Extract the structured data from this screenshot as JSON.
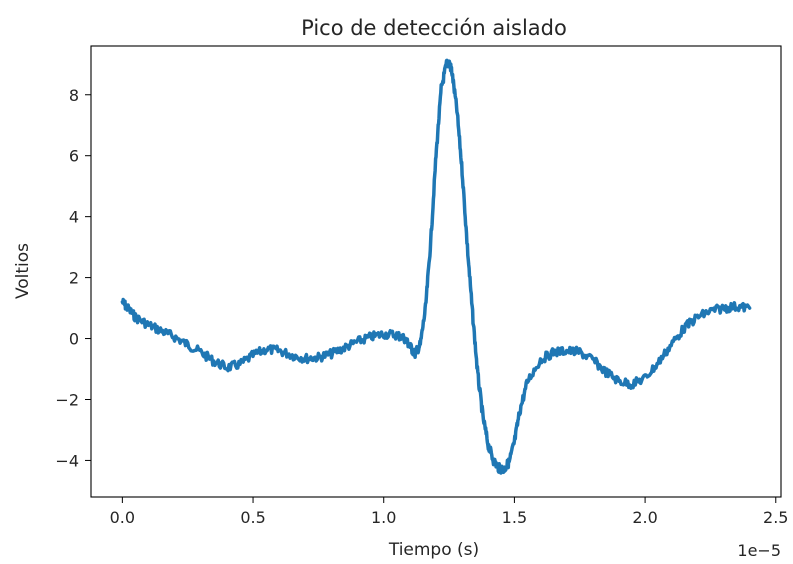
{
  "chart_data": {
    "type": "line",
    "title": "Pico de detección aislado",
    "xlabel": "Tiempo (s)",
    "ylabel": "Voltios",
    "x_offset_label": "1e−5",
    "xlim": [
      -0.12,
      2.52
    ],
    "ylim": [
      -5.2,
      9.6
    ],
    "x_ticks": [
      0.0,
      0.5,
      1.0,
      1.5,
      2.0,
      2.5
    ],
    "x_tick_labels": [
      "0.0",
      "0.5",
      "1.0",
      "1.5",
      "2.0",
      "2.5"
    ],
    "y_ticks": [
      -4,
      -2,
      0,
      2,
      4,
      6,
      8
    ],
    "y_tick_labels": [
      "−4",
      "−2",
      "0",
      "2",
      "4",
      "6",
      "8"
    ],
    "grid": false,
    "color": "#1f77b4",
    "series": [
      {
        "x": [
          0.0,
          0.02,
          0.05,
          0.1,
          0.15,
          0.2,
          0.25,
          0.3,
          0.35,
          0.4,
          0.45,
          0.5,
          0.55,
          0.6,
          0.65,
          0.7,
          0.75,
          0.8,
          0.85,
          0.9,
          0.95,
          1.0,
          1.05,
          1.08,
          1.1,
          1.12,
          1.14,
          1.16,
          1.18,
          1.2,
          1.22,
          1.24,
          1.25,
          1.26,
          1.28,
          1.3,
          1.32,
          1.34,
          1.36,
          1.38,
          1.4,
          1.42,
          1.44,
          1.46,
          1.48,
          1.5,
          1.52,
          1.55,
          1.6,
          1.65,
          1.7,
          1.75,
          1.8,
          1.85,
          1.9,
          1.95,
          2.0,
          2.05,
          2.1,
          2.15,
          2.2,
          2.25,
          2.3,
          2.35,
          2.4
        ],
        "y": [
          1.2,
          1.0,
          0.7,
          0.45,
          0.25,
          0.05,
          -0.2,
          -0.45,
          -0.75,
          -0.95,
          -0.85,
          -0.55,
          -0.35,
          -0.4,
          -0.55,
          -0.65,
          -0.62,
          -0.5,
          -0.3,
          -0.1,
          0.05,
          0.15,
          0.12,
          0.0,
          -0.25,
          -0.5,
          -0.2,
          1.0,
          3.2,
          6.0,
          8.2,
          9.0,
          9.05,
          8.8,
          7.5,
          5.5,
          3.0,
          0.8,
          -1.2,
          -2.6,
          -3.5,
          -4.0,
          -4.25,
          -4.3,
          -4.05,
          -3.4,
          -2.4,
          -1.4,
          -0.7,
          -0.45,
          -0.4,
          -0.45,
          -0.7,
          -1.1,
          -1.4,
          -1.5,
          -1.3,
          -0.8,
          -0.2,
          0.35,
          0.7,
          0.9,
          1.0,
          1.05,
          1.0
        ]
      }
    ]
  }
}
